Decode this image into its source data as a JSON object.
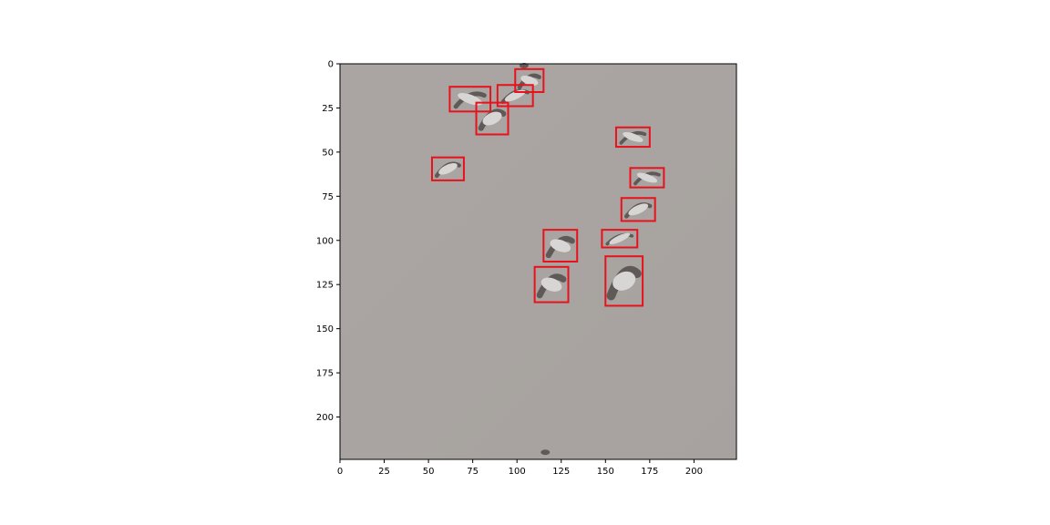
{
  "image": {
    "width": 224,
    "height": 224,
    "background_color": "#a9a4a1",
    "subject": "flock of birds (gulls) in flight against an overcast sky"
  },
  "axes": {
    "x_ticks": [
      0,
      25,
      50,
      75,
      100,
      125,
      150,
      175,
      200
    ],
    "y_ticks": [
      0,
      25,
      50,
      75,
      100,
      125,
      150,
      175,
      200
    ],
    "xlim": [
      0,
      224
    ],
    "ylim": [
      224,
      0
    ]
  },
  "box_color": "#e8121c",
  "detections": [
    {
      "id": 1,
      "x0": 99,
      "y0": 3,
      "x1": 115,
      "y1": 16
    },
    {
      "id": 2,
      "x0": 89,
      "y0": 12,
      "x1": 109,
      "y1": 24
    },
    {
      "id": 3,
      "x0": 62,
      "y0": 13,
      "x1": 85,
      "y1": 27
    },
    {
      "id": 4,
      "x0": 77,
      "y0": 22,
      "x1": 95,
      "y1": 40
    },
    {
      "id": 5,
      "x0": 156,
      "y0": 36,
      "x1": 175,
      "y1": 47
    },
    {
      "id": 6,
      "x0": 52,
      "y0": 53,
      "x1": 70,
      "y1": 66
    },
    {
      "id": 7,
      "x0": 164,
      "y0": 59,
      "x1": 183,
      "y1": 70
    },
    {
      "id": 8,
      "x0": 159,
      "y0": 76,
      "x1": 178,
      "y1": 89
    },
    {
      "id": 9,
      "x0": 115,
      "y0": 94,
      "x1": 134,
      "y1": 112
    },
    {
      "id": 10,
      "x0": 148,
      "y0": 94,
      "x1": 168,
      "y1": 104
    },
    {
      "id": 11,
      "x0": 110,
      "y0": 115,
      "x1": 129,
      "y1": 135
    },
    {
      "id": 12,
      "x0": 150,
      "y0": 109,
      "x1": 171,
      "y1": 137
    }
  ]
}
